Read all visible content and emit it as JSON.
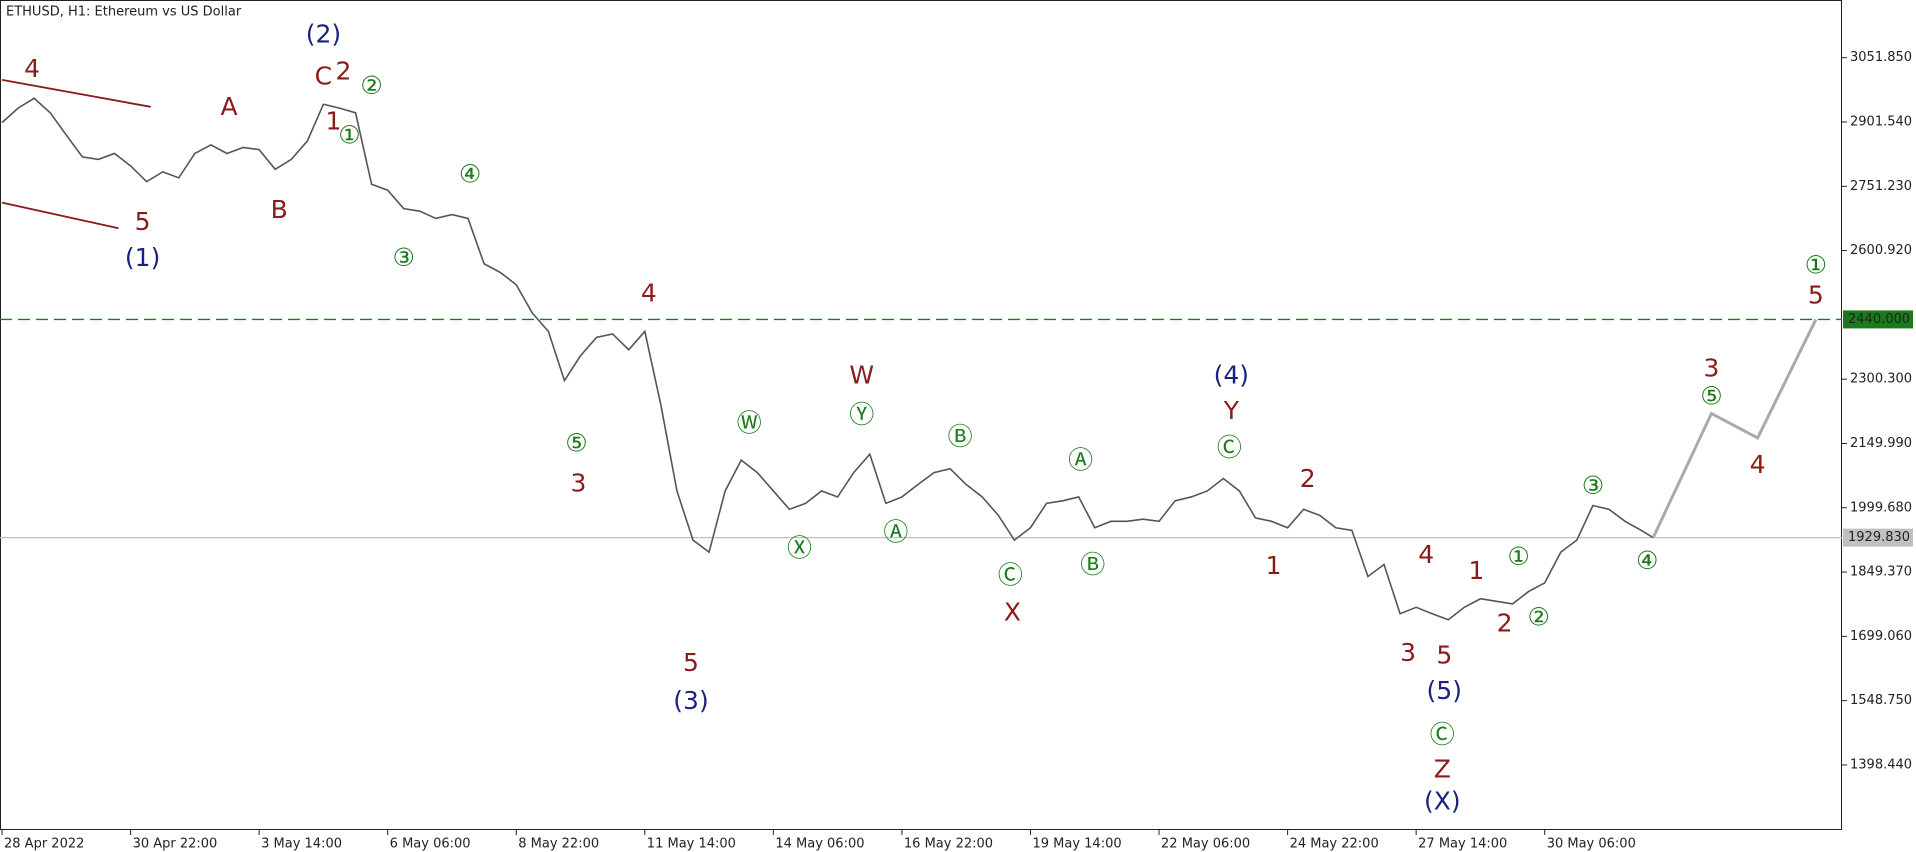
{
  "chart_data": {
    "type": "line",
    "title": "ETHUSD, H1:  Ethereum vs US Dollar",
    "xlim": [
      -1,
      916
    ],
    "ylim": [
      1246.4,
      3186.7
    ],
    "xticks": [
      {
        "value": 0,
        "label": "28 Apr 2022"
      },
      {
        "value": 64,
        "label": "30 Apr 22:00"
      },
      {
        "value": 128,
        "label": "3 May 14:00"
      },
      {
        "value": 192,
        "label": "6 May 06:00"
      },
      {
        "value": 256,
        "label": "8 May 22:00"
      },
      {
        "value": 320,
        "label": "11 May 14:00"
      },
      {
        "value": 384,
        "label": "14 May 06:00"
      },
      {
        "value": 448,
        "label": "16 May 22:00"
      },
      {
        "value": 512,
        "label": "19 May 14:00"
      },
      {
        "value": 576,
        "label": "22 May 06:00"
      },
      {
        "value": 640,
        "label": "24 May 22:00"
      },
      {
        "value": 704,
        "label": "27 May 14:00"
      },
      {
        "value": 768,
        "label": "30 May 06:00"
      }
    ],
    "yticks": [
      {
        "value": 3051.85,
        "label": "3051.850"
      },
      {
        "value": 2901.54,
        "label": "2901.540"
      },
      {
        "value": 2751.23,
        "label": "2751.230"
      },
      {
        "value": 2600.92,
        "label": "2600.920"
      },
      {
        "value": 2300.3,
        "label": "2300.300"
      },
      {
        "value": 2149.99,
        "label": "2149.990"
      },
      {
        "value": 1999.68,
        "label": "1999.680"
      },
      {
        "value": 1849.37,
        "label": "1849.370"
      },
      {
        "value": 1699.06,
        "label": "1699.060"
      },
      {
        "value": 1548.75,
        "label": "1548.750"
      },
      {
        "value": 1398.44,
        "label": "1398.440"
      }
    ],
    "series": [
      {
        "name": "ETHUSD",
        "color": "#555555",
        "x": [
          0,
          8,
          16,
          24,
          32,
          40,
          48,
          56,
          64,
          72,
          80,
          88,
          96,
          104,
          112,
          120,
          128,
          136,
          144,
          152,
          160,
          168,
          176,
          184,
          192,
          200,
          208,
          216,
          224,
          232,
          240,
          248,
          256,
          264,
          272,
          280,
          288,
          296,
          304,
          312,
          320,
          328,
          336,
          344,
          352,
          360,
          368,
          376,
          384,
          392,
          400,
          408,
          416,
          424,
          432,
          440,
          448,
          456,
          464,
          472,
          480,
          488,
          496,
          504,
          512,
          520,
          528,
          536,
          544,
          552,
          560,
          568,
          576,
          584,
          592,
          600,
          608,
          616,
          624,
          632,
          640,
          648,
          656,
          664,
          672,
          680,
          688,
          696,
          704,
          712,
          720,
          728,
          736,
          744,
          752,
          760,
          768,
          776,
          784,
          792,
          800,
          808,
          816,
          822
        ],
        "values": [
          2900,
          2934,
          2957,
          2923,
          2871,
          2820,
          2814,
          2828,
          2799,
          2762,
          2785,
          2771,
          2828,
          2848,
          2828,
          2842,
          2837,
          2791,
          2814,
          2857,
          2943,
          2934,
          2923,
          2756,
          2742,
          2699,
          2693,
          2676,
          2685,
          2676,
          2570,
          2550,
          2521,
          2455,
          2412,
          2297,
          2355,
          2398,
          2406,
          2369,
          2412,
          2240,
          2039,
          1924,
          1896,
          2039,
          2111,
          2082,
          2039,
          1996,
          2010,
          2039,
          2025,
          2082,
          2125,
          2010,
          2025,
          2054,
          2082,
          2091,
          2054,
          2025,
          1982,
          1924,
          1953,
          2010,
          2016,
          2025,
          1953,
          1968,
          1968,
          1973,
          1968,
          2016,
          2025,
          2039,
          2068,
          2039,
          1976,
          1968,
          1953,
          1996,
          1982,
          1953,
          1947,
          1839,
          1867,
          1752,
          1767,
          1752,
          1738,
          1767,
          1787,
          1781,
          1775,
          1804,
          1824,
          1896,
          1924,
          2005,
          1996,
          1968,
          1947,
          1929.83
        ]
      },
      {
        "name": "Forecast",
        "color": "#aaaaaa",
        "x": [
          822,
          851,
          874,
          903
        ],
        "values": [
          1929.83,
          2220,
          2163,
          2440
        ]
      }
    ],
    "channel_lines": [
      {
        "color": "#8b1a1a",
        "x": [
          0,
          74
        ],
        "values": [
          3000,
          2937
        ]
      },
      {
        "color": "#8b1a1a",
        "x": [
          0,
          58
        ],
        "values": [
          2713,
          2653
        ]
      }
    ],
    "levels": [
      {
        "value": 2440,
        "label": "2440.000",
        "color": "#1b7a1b",
        "style": "dashed"
      },
      {
        "value": 1929.83,
        "label": "1929.830",
        "color": "#c0c0c0",
        "style": "solid"
      }
    ],
    "annotations": [
      {
        "text": "4",
        "x": 15,
        "y": 3023,
        "color": "#8b1a1a"
      },
      {
        "text": "(2)",
        "x": 160,
        "y": 3104,
        "color": "#1a237e"
      },
      {
        "text": "C",
        "x": 160,
        "y": 3006,
        "color": "#8b1a1a"
      },
      {
        "text": "2",
        "x": 170,
        "y": 3017,
        "color": "#8b1a1a"
      },
      {
        "text": "②",
        "x": 184,
        "y": 2983,
        "color": "#1b7a1b"
      },
      {
        "text": "1",
        "x": 165,
        "y": 2900,
        "color": "#8b1a1a"
      },
      {
        "text": "①",
        "x": 173,
        "y": 2868,
        "color": "#1b7a1b"
      },
      {
        "text": "A",
        "x": 113,
        "y": 2934,
        "color": "#8b1a1a"
      },
      {
        "text": "B",
        "x": 138,
        "y": 2693,
        "color": "#8b1a1a"
      },
      {
        "text": "5",
        "x": 70,
        "y": 2665,
        "color": "#8b1a1a"
      },
      {
        "text": "(1)",
        "x": 70,
        "y": 2581,
        "color": "#1a237e"
      },
      {
        "text": "④",
        "x": 233,
        "y": 2776,
        "color": "#1b7a1b"
      },
      {
        "text": "③",
        "x": 200,
        "y": 2581,
        "color": "#1b7a1b"
      },
      {
        "text": "4",
        "x": 322,
        "y": 2498,
        "color": "#8b1a1a"
      },
      {
        "text": "⑤",
        "x": 286,
        "y": 2148,
        "color": "#1b7a1b"
      },
      {
        "text": "3",
        "x": 287,
        "y": 2054,
        "color": "#8b1a1a"
      },
      {
        "text": "5",
        "x": 343,
        "y": 1635,
        "color": "#8b1a1a"
      },
      {
        "text": "(3)",
        "x": 343,
        "y": 1546,
        "color": "#1a237e"
      },
      {
        "text": "Ⓦ",
        "x": 372,
        "y": 2194,
        "color": "#1b7a1b"
      },
      {
        "text": "W",
        "x": 428,
        "y": 2306,
        "color": "#8b1a1a"
      },
      {
        "text": "Ⓨ",
        "x": 428,
        "y": 2214,
        "color": "#1b7a1b"
      },
      {
        "text": "Ⓧ",
        "x": 397,
        "y": 1902,
        "color": "#1b7a1b"
      },
      {
        "text": "Ⓐ",
        "x": 445,
        "y": 1939,
        "color": "#1b7a1b"
      },
      {
        "text": "Ⓑ",
        "x": 477,
        "y": 2163,
        "color": "#1b7a1b"
      },
      {
        "text": "Ⓒ",
        "x": 502,
        "y": 1839,
        "color": "#1b7a1b"
      },
      {
        "text": "X",
        "x": 503,
        "y": 1752,
        "color": "#8b1a1a"
      },
      {
        "text": "Ⓐ",
        "x": 537,
        "y": 2108,
        "color": "#1b7a1b"
      },
      {
        "text": "Ⓑ",
        "x": 543,
        "y": 1864,
        "color": "#1b7a1b"
      },
      {
        "text": "(4)",
        "x": 612,
        "y": 2306,
        "color": "#1a237e"
      },
      {
        "text": "Y",
        "x": 612,
        "y": 2223,
        "color": "#8b1a1a"
      },
      {
        "text": "Ⓒ",
        "x": 611,
        "y": 2137,
        "color": "#1b7a1b"
      },
      {
        "text": "2",
        "x": 650,
        "y": 2065,
        "color": "#8b1a1a"
      },
      {
        "text": "1",
        "x": 633,
        "y": 1861,
        "color": "#8b1a1a"
      },
      {
        "text": "4",
        "x": 709,
        "y": 1887,
        "color": "#8b1a1a"
      },
      {
        "text": "1",
        "x": 734,
        "y": 1850,
        "color": "#8b1a1a"
      },
      {
        "text": "①",
        "x": 755,
        "y": 1882,
        "color": "#1b7a1b"
      },
      {
        "text": "3",
        "x": 700,
        "y": 1658,
        "color": "#8b1a1a"
      },
      {
        "text": "5",
        "x": 718,
        "y": 1652,
        "color": "#8b1a1a"
      },
      {
        "text": "2",
        "x": 748,
        "y": 1727,
        "color": "#8b1a1a"
      },
      {
        "text": "②",
        "x": 765,
        "y": 1741,
        "color": "#1b7a1b"
      },
      {
        "text": "(5)",
        "x": 718,
        "y": 1569,
        "color": "#1a237e"
      },
      {
        "text": "Ⓒ",
        "x": 717,
        "y": 1466,
        "color": "#1b7a1b"
      },
      {
        "text": "Z",
        "x": 717,
        "y": 1385,
        "color": "#8b1a1a"
      },
      {
        "text": "(X)",
        "x": 717,
        "y": 1311,
        "color": "#1a237e"
      },
      {
        "text": "③",
        "x": 792,
        "y": 2048,
        "color": "#1b7a1b"
      },
      {
        "text": "④",
        "x": 819,
        "y": 1873,
        "color": "#1b7a1b"
      },
      {
        "text": "⑤",
        "x": 851,
        "y": 2257,
        "color": "#1b7a1b"
      },
      {
        "text": "3",
        "x": 851,
        "y": 2323,
        "color": "#8b1a1a"
      },
      {
        "text": "4",
        "x": 874,
        "y": 2097,
        "color": "#8b1a1a"
      },
      {
        "text": "①",
        "x": 903,
        "y": 2564,
        "color": "#1b7a1b"
      },
      {
        "text": "5",
        "x": 903,
        "y": 2493,
        "color": "#8b1a1a"
      }
    ]
  }
}
